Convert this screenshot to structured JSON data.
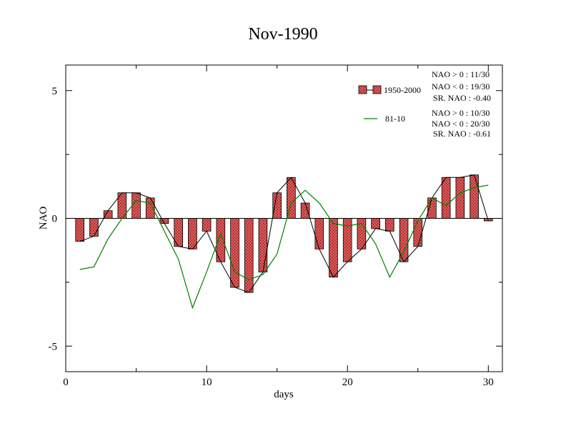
{
  "chart_data": {
    "type": "bar",
    "title": "Nov-1990",
    "xlabel": "days",
    "ylabel": "NAO",
    "xlim": [
      0,
      31
    ],
    "ylim": [
      -6,
      6
    ],
    "xticks": [
      0,
      10,
      20,
      30
    ],
    "yticks": [
      -5,
      0,
      5
    ],
    "xtick_labels": [
      "0",
      "10",
      "20",
      "30"
    ],
    "ytick_labels": [
      "-5",
      "0",
      "5"
    ],
    "x": [
      1,
      2,
      3,
      4,
      5,
      6,
      7,
      8,
      9,
      10,
      11,
      12,
      13,
      14,
      15,
      16,
      17,
      18,
      19,
      20,
      21,
      22,
      23,
      24,
      25,
      26,
      27,
      28,
      29,
      30
    ],
    "series": [
      {
        "name": "1950-2000",
        "kind": "bar+line",
        "color": "#e05050",
        "values": [
          -0.9,
          -0.7,
          0.3,
          1.0,
          1.0,
          0.8,
          -0.2,
          -1.1,
          -1.2,
          -0.5,
          -1.7,
          -2.7,
          -2.9,
          -2.1,
          1.0,
          1.6,
          0.6,
          -1.2,
          -2.3,
          -1.7,
          -1.2,
          -0.4,
          -0.5,
          -1.7,
          -1.1,
          0.8,
          1.6,
          1.6,
          1.7,
          -0.1
        ]
      },
      {
        "name": "81-10",
        "kind": "line",
        "color": "#008000",
        "values": [
          -2.0,
          -1.9,
          -0.8,
          0.0,
          0.7,
          0.6,
          -0.5,
          -1.6,
          -3.5,
          -2.1,
          -0.6,
          -2.1,
          -2.4,
          -2.2,
          -1.4,
          0.6,
          1.1,
          0.6,
          -0.2,
          -0.3,
          -0.2,
          -1.0,
          -2.3,
          -1.3,
          -0.1,
          0.8,
          0.5,
          1.0,
          1.2,
          1.3
        ]
      }
    ],
    "legend_position": "top-right",
    "stats": [
      [
        "NAO > 0 : 11/30",
        "NAO < 0 : 19/30",
        "SR. NAO : -0.40"
      ],
      [
        "NAO > 0 : 10/30",
        "NAO < 0 : 20/30",
        "SR. NAO : -0.61"
      ]
    ],
    "colors": {
      "bar_fill": "#e05050",
      "bar_outline": "#000000",
      "line_1950": "#000000",
      "line_8110": "#008000"
    }
  }
}
